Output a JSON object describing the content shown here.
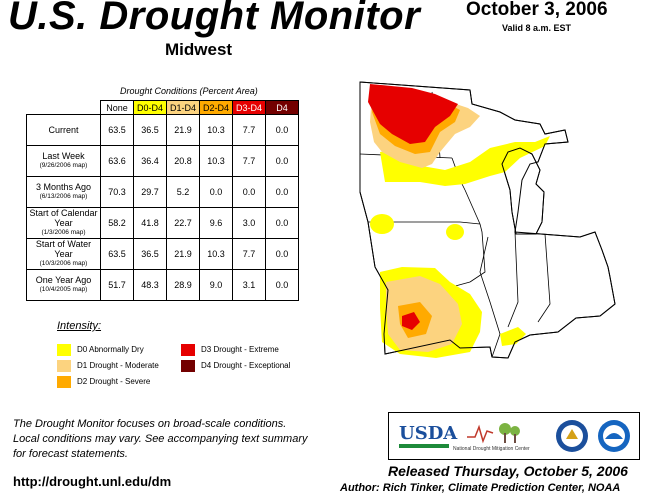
{
  "header": {
    "title": "U.S. Drought Monitor",
    "region": "Midwest",
    "date": "October 3, 2006",
    "valid": "Valid 8 a.m. EST"
  },
  "table": {
    "caption": "Drought Conditions (Percent Area)",
    "columns": [
      "None",
      "D0-D4",
      "D1-D4",
      "D2-D4",
      "D3-D4",
      "D4"
    ],
    "column_colors": [
      "#ffffff",
      "#ffff00",
      "#fcd37f",
      "#ffaa00",
      "#e60000",
      "#730000"
    ],
    "rows": [
      {
        "label": "Current",
        "sub": "",
        "values": [
          "63.5",
          "36.5",
          "21.9",
          "10.3",
          "7.7",
          "0.0"
        ]
      },
      {
        "label": "Last Week",
        "sub": "(9/26/2006 map)",
        "values": [
          "63.6",
          "36.4",
          "20.8",
          "10.3",
          "7.7",
          "0.0"
        ]
      },
      {
        "label": "3 Months Ago",
        "sub": "(6/13/2006 map)",
        "values": [
          "70.3",
          "29.7",
          "5.2",
          "0.0",
          "0.0",
          "0.0"
        ]
      },
      {
        "label": "Start of Calendar Year",
        "sub": "(1/3/2006 map)",
        "values": [
          "58.2",
          "41.8",
          "22.7",
          "9.6",
          "3.0",
          "0.0"
        ]
      },
      {
        "label": "Start of Water Year",
        "sub": "(10/3/2006 map)",
        "values": [
          "63.5",
          "36.5",
          "21.9",
          "10.3",
          "7.7",
          "0.0"
        ]
      },
      {
        "label": "One Year Ago",
        "sub": "(10/4/2005 map)",
        "values": [
          "51.7",
          "48.3",
          "28.9",
          "9.0",
          "3.1",
          "0.0"
        ]
      }
    ]
  },
  "legend": {
    "title": "Intensity:",
    "items": [
      {
        "label": "D0 Abnormally Dry",
        "color": "#ffff00"
      },
      {
        "label": "D1 Drought - Moderate",
        "color": "#fcd37f"
      },
      {
        "label": "D2 Drought - Severe",
        "color": "#ffaa00"
      },
      {
        "label": "D3 Drought - Extreme",
        "color": "#e60000"
      },
      {
        "label": "D4 Drought - Exceptional",
        "color": "#730000"
      }
    ]
  },
  "footer": {
    "note_line1": "The Drought Monitor focuses on broad-scale conditions.",
    "note_line2": "Local conditions may vary. See accompanying text summary",
    "note_line3": "for forecast statements.",
    "url": "http://drought.unl.edu/dm",
    "released": "Released Thursday, October 5, 2006",
    "author": "Author: Rich Tinker, Climate Prediction Center, NOAA"
  },
  "logos": {
    "usda": "USDA",
    "ndmc": "National Drought Mitigation Center"
  }
}
